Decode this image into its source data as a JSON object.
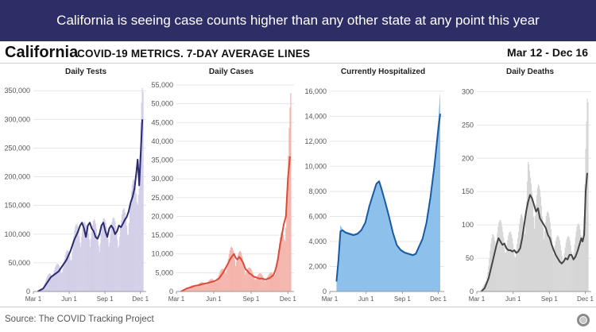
{
  "banner": {
    "text": "California is seeing case counts higher than any other state at any point this year"
  },
  "header": {
    "state": "California",
    "subtitle": "COVID-19 METRICS. 7-DAY AVERAGE LINES",
    "date_range": "Mar 12 - Dec 16"
  },
  "footer": {
    "source": "Source: The COVID Tracking Project"
  },
  "colors": {
    "tests_bar": "#d3cfe8",
    "tests_line": "#2a2a6e",
    "cases_bar": "#f4b5ac",
    "cases_line": "#d94b3b",
    "hosp_fill": "#8ec0ec",
    "hosp_line": "#1a5aa0",
    "deaths_bar": "#d6d6d6",
    "deaths_line": "#444444"
  },
  "chart_data": [
    {
      "type": "bar",
      "title": "Daily Tests",
      "x_ticks": [
        "Mar 1",
        "Jun 1",
        "Sep 1",
        "Dec 1"
      ],
      "x_tick_days": [
        0,
        92,
        184,
        275
      ],
      "x_range": [
        0,
        290
      ],
      "ylim": [
        0,
        360000
      ],
      "y_ticks": [
        0,
        50000,
        100000,
        150000,
        200000,
        250000,
        300000,
        350000
      ],
      "y_tick_labels": [
        "0",
        "50,000",
        "100,000",
        "150,000",
        "200,000",
        "250,000",
        "300,000",
        "350,000"
      ],
      "avg_line": [
        [
          11,
          0
        ],
        [
          25,
          5000
        ],
        [
          35,
          15000
        ],
        [
          45,
          25000
        ],
        [
          55,
          30000
        ],
        [
          65,
          35000
        ],
        [
          75,
          45000
        ],
        [
          85,
          55000
        ],
        [
          95,
          70000
        ],
        [
          105,
          90000
        ],
        [
          115,
          105000
        ],
        [
          120,
          115000
        ],
        [
          125,
          120000
        ],
        [
          130,
          110000
        ],
        [
          135,
          95000
        ],
        [
          140,
          115000
        ],
        [
          145,
          120000
        ],
        [
          150,
          110000
        ],
        [
          155,
          105000
        ],
        [
          160,
          95000
        ],
        [
          165,
          92000
        ],
        [
          170,
          100000
        ],
        [
          175,
          115000
        ],
        [
          180,
          120000
        ],
        [
          185,
          105000
        ],
        [
          190,
          95000
        ],
        [
          195,
          110000
        ],
        [
          200,
          115000
        ],
        [
          205,
          110000
        ],
        [
          210,
          100000
        ],
        [
          215,
          105000
        ],
        [
          220,
          115000
        ],
        [
          225,
          112000
        ],
        [
          230,
          118000
        ],
        [
          235,
          125000
        ],
        [
          240,
          130000
        ],
        [
          245,
          140000
        ],
        [
          250,
          155000
        ],
        [
          255,
          165000
        ],
        [
          260,
          180000
        ],
        [
          265,
          210000
        ],
        [
          268,
          230000
        ],
        [
          270,
          210000
        ],
        [
          272,
          185000
        ],
        [
          275,
          230000
        ],
        [
          280,
          300000
        ]
      ],
      "bar_envelope": [
        [
          11,
          0
        ],
        [
          25,
          10000
        ],
        [
          35,
          25000
        ],
        [
          45,
          40000
        ],
        [
          55,
          45000
        ],
        [
          65,
          50000
        ],
        [
          75,
          55000
        ],
        [
          85,
          70000
        ],
        [
          95,
          85000
        ],
        [
          105,
          110000
        ],
        [
          115,
          125000
        ],
        [
          125,
          140000
        ],
        [
          135,
          115000
        ],
        [
          145,
          140000
        ],
        [
          155,
          130000
        ],
        [
          165,
          110000
        ],
        [
          175,
          135000
        ],
        [
          185,
          125000
        ],
        [
          195,
          135000
        ],
        [
          205,
          130000
        ],
        [
          215,
          125000
        ],
        [
          225,
          135000
        ],
        [
          235,
          150000
        ],
        [
          245,
          165000
        ],
        [
          255,
          190000
        ],
        [
          262,
          215000
        ],
        [
          268,
          260000
        ],
        [
          272,
          225000
        ],
        [
          276,
          310000
        ],
        [
          280,
          355000
        ]
      ]
    },
    {
      "type": "bar",
      "title": "Daily Cases",
      "x_ticks": [
        "Mar 1",
        "Jun 1",
        "Sep 1",
        "Dec 1"
      ],
      "x_tick_days": [
        0,
        92,
        184,
        275
      ],
      "x_range": [
        0,
        290
      ],
      "ylim": [
        0,
        55000
      ],
      "y_ticks": [
        0,
        5000,
        10000,
        15000,
        20000,
        25000,
        30000,
        35000,
        40000,
        45000,
        50000,
        55000
      ],
      "y_tick_labels": [
        "0",
        "5,000",
        "10,000",
        "15,000",
        "20,000",
        "25,000",
        "30,000",
        "35,000",
        "40,000",
        "45,000",
        "50,000",
        "55,000"
      ],
      "avg_line": [
        [
          11,
          0
        ],
        [
          25,
          800
        ],
        [
          35,
          1100
        ],
        [
          45,
          1500
        ],
        [
          55,
          1700
        ],
        [
          65,
          2000
        ],
        [
          75,
          2200
        ],
        [
          85,
          2500
        ],
        [
          95,
          2800
        ],
        [
          105,
          3500
        ],
        [
          115,
          5000
        ],
        [
          125,
          7000
        ],
        [
          132,
          8500
        ],
        [
          138,
          9500
        ],
        [
          142,
          10000
        ],
        [
          146,
          9000
        ],
        [
          150,
          8500
        ],
        [
          155,
          9200
        ],
        [
          160,
          8500
        ],
        [
          165,
          7500
        ],
        [
          170,
          6000
        ],
        [
          175,
          5500
        ],
        [
          180,
          4800
        ],
        [
          185,
          4500
        ],
        [
          190,
          4000
        ],
        [
          195,
          3800
        ],
        [
          200,
          3600
        ],
        [
          205,
          3400
        ],
        [
          210,
          3500
        ],
        [
          215,
          3300
        ],
        [
          220,
          3200
        ],
        [
          225,
          3400
        ],
        [
          230,
          3600
        ],
        [
          235,
          4000
        ],
        [
          240,
          4500
        ],
        [
          245,
          6000
        ],
        [
          250,
          8500
        ],
        [
          255,
          12000
        ],
        [
          260,
          15000
        ],
        [
          265,
          18000
        ],
        [
          270,
          20000
        ],
        [
          275,
          30000
        ],
        [
          280,
          36000
        ]
      ],
      "bar_envelope": [
        [
          11,
          0
        ],
        [
          25,
          1200
        ],
        [
          35,
          1500
        ],
        [
          45,
          2000
        ],
        [
          55,
          2300
        ],
        [
          65,
          2600
        ],
        [
          75,
          3000
        ],
        [
          85,
          3300
        ],
        [
          95,
          3800
        ],
        [
          105,
          4800
        ],
        [
          115,
          6800
        ],
        [
          125,
          9000
        ],
        [
          135,
          12000
        ],
        [
          142,
          13000
        ],
        [
          150,
          11500
        ],
        [
          160,
          10500
        ],
        [
          170,
          8000
        ],
        [
          180,
          6500
        ],
        [
          190,
          5500
        ],
        [
          200,
          5000
        ],
        [
          210,
          4800
        ],
        [
          220,
          4500
        ],
        [
          230,
          4800
        ],
        [
          240,
          6000
        ],
        [
          250,
          10000
        ],
        [
          258,
          16000
        ],
        [
          265,
          21000
        ],
        [
          272,
          26000
        ],
        [
          278,
          44000
        ],
        [
          282,
          54000
        ]
      ]
    },
    {
      "type": "area",
      "title": "Currently Hospitalized",
      "x_ticks": [
        "Mar 1",
        "Jun 1",
        "Sep 1",
        "Dec 1"
      ],
      "x_tick_days": [
        0,
        92,
        184,
        275
      ],
      "x_range": [
        0,
        290
      ],
      "ylim": [
        0,
        16500
      ],
      "y_ticks": [
        0,
        2000,
        4000,
        6000,
        8000,
        10000,
        12000,
        14000,
        16000
      ],
      "y_tick_labels": [
        "0",
        "2,000",
        "4,000",
        "6,000",
        "8,000",
        "10,000",
        "12,000",
        "14,000",
        "16,000"
      ],
      "avg_line": [
        [
          17,
          800
        ],
        [
          22,
          2500
        ],
        [
          27,
          4800
        ],
        [
          32,
          4900
        ],
        [
          40,
          4700
        ],
        [
          50,
          4600
        ],
        [
          60,
          4500
        ],
        [
          70,
          4600
        ],
        [
          80,
          4900
        ],
        [
          90,
          5500
        ],
        [
          100,
          6800
        ],
        [
          110,
          7800
        ],
        [
          118,
          8600
        ],
        [
          125,
          8800
        ],
        [
          130,
          8300
        ],
        [
          140,
          7200
        ],
        [
          150,
          6000
        ],
        [
          160,
          4700
        ],
        [
          170,
          3700
        ],
        [
          180,
          3300
        ],
        [
          190,
          3100
        ],
        [
          200,
          3000
        ],
        [
          210,
          2900
        ],
        [
          218,
          3000
        ],
        [
          225,
          3500
        ],
        [
          235,
          4200
        ],
        [
          245,
          5500
        ],
        [
          255,
          7500
        ],
        [
          265,
          10000
        ],
        [
          275,
          13000
        ],
        [
          280,
          14200
        ]
      ],
      "area_envelope": [
        [
          17,
          800
        ],
        [
          22,
          3500
        ],
        [
          27,
          5300
        ],
        [
          32,
          5000
        ],
        [
          40,
          4800
        ],
        [
          50,
          4700
        ],
        [
          60,
          4600
        ],
        [
          70,
          4700
        ],
        [
          80,
          5000
        ],
        [
          90,
          5600
        ],
        [
          100,
          6900
        ],
        [
          110,
          7900
        ],
        [
          118,
          8700
        ],
        [
          125,
          8900
        ],
        [
          130,
          8400
        ],
        [
          140,
          7300
        ],
        [
          150,
          6100
        ],
        [
          160,
          4800
        ],
        [
          170,
          3800
        ],
        [
          180,
          3400
        ],
        [
          190,
          3200
        ],
        [
          200,
          3100
        ],
        [
          210,
          3000
        ],
        [
          218,
          3100
        ],
        [
          225,
          3600
        ],
        [
          235,
          4300
        ],
        [
          245,
          5700
        ],
        [
          255,
          7800
        ],
        [
          265,
          10500
        ],
        [
          275,
          13800
        ],
        [
          280,
          16000
        ]
      ]
    },
    {
      "type": "bar",
      "title": "Daily Deaths",
      "x_ticks": [
        "Mar 1",
        "Jun 1",
        "Sep 1",
        "Dec 1"
      ],
      "x_tick_days": [
        0,
        92,
        184,
        275
      ],
      "x_range": [
        0,
        290
      ],
      "ylim": [
        0,
        310
      ],
      "y_ticks": [
        0,
        50,
        100,
        150,
        200,
        250,
        300
      ],
      "y_tick_labels": [
        "0",
        "50",
        "100",
        "150",
        "200",
        "250",
        "300"
      ],
      "avg_line": [
        [
          11,
          0
        ],
        [
          20,
          5
        ],
        [
          30,
          20
        ],
        [
          40,
          45
        ],
        [
          50,
          70
        ],
        [
          55,
          80
        ],
        [
          60,
          75
        ],
        [
          65,
          70
        ],
        [
          70,
          72
        ],
        [
          75,
          65
        ],
        [
          80,
          62
        ],
        [
          85,
          62
        ],
        [
          90,
          60
        ],
        [
          95,
          62
        ],
        [
          100,
          58
        ],
        [
          105,
          60
        ],
        [
          110,
          65
        ],
        [
          115,
          80
        ],
        [
          120,
          100
        ],
        [
          125,
          120
        ],
        [
          130,
          135
        ],
        [
          135,
          145
        ],
        [
          140,
          140
        ],
        [
          145,
          130
        ],
        [
          150,
          120
        ],
        [
          155,
          125
        ],
        [
          160,
          110
        ],
        [
          165,
          105
        ],
        [
          170,
          100
        ],
        [
          175,
          95
        ],
        [
          180,
          85
        ],
        [
          185,
          80
        ],
        [
          190,
          70
        ],
        [
          195,
          62
        ],
        [
          200,
          55
        ],
        [
          205,
          50
        ],
        [
          210,
          45
        ],
        [
          215,
          42
        ],
        [
          220,
          45
        ],
        [
          225,
          50
        ],
        [
          230,
          48
        ],
        [
          235,
          55
        ],
        [
          240,
          55
        ],
        [
          245,
          48
        ],
        [
          250,
          52
        ],
        [
          255,
          60
        ],
        [
          260,
          70
        ],
        [
          265,
          80
        ],
        [
          268,
          75
        ],
        [
          272,
          85
        ],
        [
          276,
          150
        ],
        [
          280,
          178
        ]
      ],
      "bar_envelope": [
        [
          11,
          0
        ],
        [
          20,
          15
        ],
        [
          30,
          45
        ],
        [
          40,
          90
        ],
        [
          50,
          120
        ],
        [
          55,
          115
        ],
        [
          65,
          100
        ],
        [
          75,
          95
        ],
        [
          85,
          90
        ],
        [
          95,
          85
        ],
        [
          105,
          90
        ],
        [
          115,
          130
        ],
        [
          125,
          160
        ],
        [
          130,
          205
        ],
        [
          135,
          175
        ],
        [
          145,
          170
        ],
        [
          155,
          165
        ],
        [
          165,
          145
        ],
        [
          175,
          135
        ],
        [
          185,
          110
        ],
        [
          195,
          95
        ],
        [
          205,
          85
        ],
        [
          215,
          75
        ],
        [
          225,
          80
        ],
        [
          235,
          85
        ],
        [
          245,
          80
        ],
        [
          255,
          100
        ],
        [
          265,
          115
        ],
        [
          272,
          140
        ],
        [
          276,
          225
        ],
        [
          280,
          290
        ]
      ]
    }
  ]
}
